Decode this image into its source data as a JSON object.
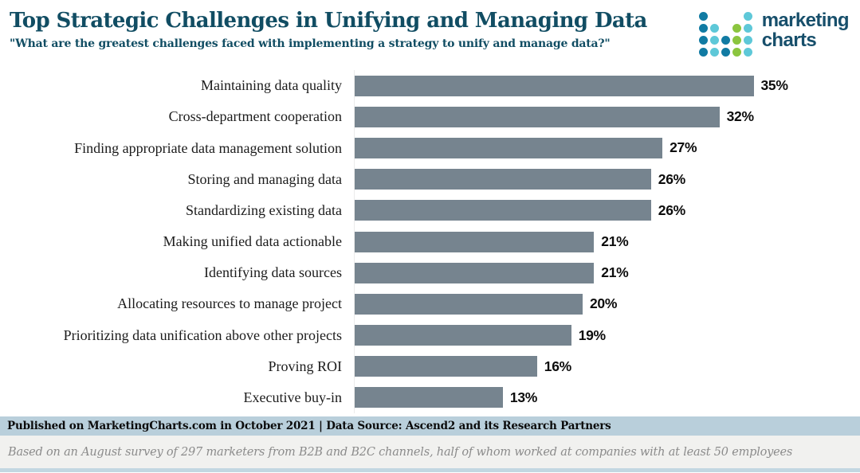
{
  "chart_data": {
    "type": "bar",
    "orientation": "horizontal",
    "title": "Top Strategic Challenges in Unifying and Managing Data",
    "subtitle": "\"What are the greatest challenges faced with implementing a strategy to unify and manage data?\"",
    "categories": [
      "Maintaining data quality",
      "Cross-department cooperation",
      "Finding appropriate data management solution",
      "Storing and managing data",
      "Standardizing existing data",
      "Making unified data actionable",
      "Identifying data sources",
      "Allocating resources to manage project",
      "Prioritizing data unification above other projects",
      "Proving ROI",
      "Executive buy-in"
    ],
    "values": [
      35,
      32,
      27,
      26,
      26,
      21,
      21,
      20,
      19,
      16,
      13
    ],
    "value_suffix": "%",
    "xlabel": "",
    "ylabel": "",
    "xlim": [
      0,
      35
    ],
    "grid": false,
    "legend": false,
    "value_labels": "end-of-bar",
    "bar_color": "#76848f"
  },
  "logo": {
    "line1": "marketing",
    "line2": "charts",
    "dot_pattern": [
      "D...T",
      "DT.GT",
      "DTDGT",
      "DTDGT"
    ],
    "dot_colors": {
      "D": "#117ba3",
      "T": "#5ec8d8",
      "G": "#8bc53f"
    },
    "text_color": "#174f6b"
  },
  "footer": {
    "published": "Published on MarketingCharts.com in October 2021 | Data Source: Ascend2 and its Research Partners",
    "note": "Based on an August survey of 297 marketers from B2B and B2C channels, half of whom worked at companies with at least 50 employees"
  },
  "colors": {
    "title_teal": "#114d63",
    "bar_slate": "#76848f",
    "published_bg": "#b9cfdb",
    "note_bg": "#f1f1ef",
    "bottom_strip": "#c2d7e1"
  }
}
